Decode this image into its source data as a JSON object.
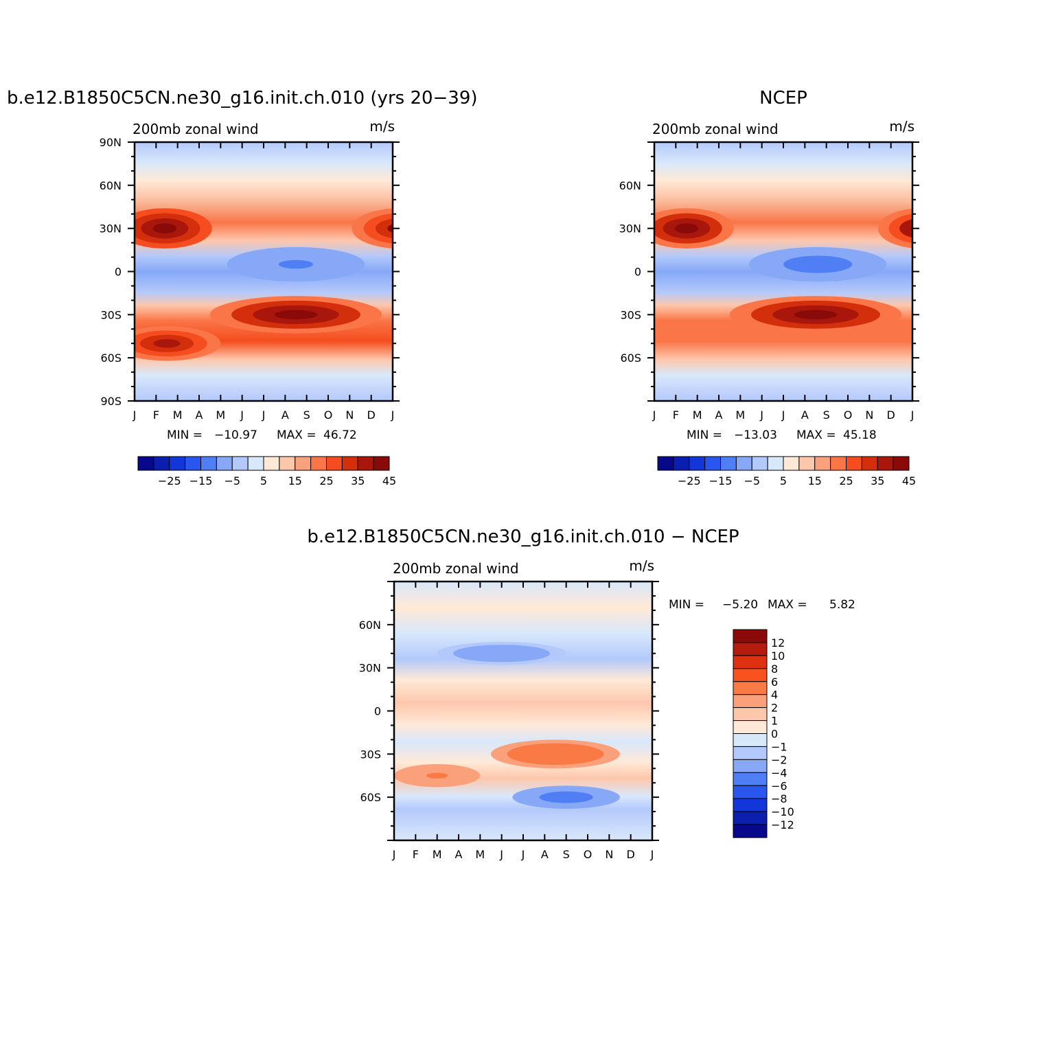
{
  "chart_data": [
    {
      "type": "heatmap",
      "title": "b.e12.B1850C5CN.ne30_g16.init.ch.010 (yrs 20−39)",
      "subtitle_left": "200mb  zonal  wind",
      "subtitle_right": "m/s",
      "x_tick_labels": [
        "J",
        "F",
        "M",
        "A",
        "M",
        "J",
        "J",
        "A",
        "S",
        "O",
        "N",
        "D",
        "J"
      ],
      "y_tick_labels": [
        "90N",
        "60N",
        "30N",
        "0",
        "30S",
        "60S",
        "90S"
      ],
      "y_tick_values": [
        90,
        60,
        30,
        0,
        -30,
        -60,
        -90
      ],
      "ylim": [
        -90,
        90
      ],
      "min_label": "MIN =",
      "min": "−10.97",
      "max_label": "MAX =",
      "max": "46.72",
      "contours": [
        {
          "lat": 30,
          "mon": 1.4,
          "value": 46.72,
          "wlat": 14,
          "wmon": 2.2
        },
        {
          "lat": 30,
          "mon": 12.3,
          "value": 40,
          "wlat": 14,
          "wmon": 2.2
        },
        {
          "lat": -30,
          "mon": 7.5,
          "value": 45,
          "wlat": 13,
          "wmon": 4
        },
        {
          "lat": 5,
          "mon": 7.5,
          "value": -10.97,
          "wlat": 12,
          "wmon": 3.2
        },
        {
          "lat": -50,
          "mon": 1.5,
          "value": 38,
          "wlat": 12,
          "wmon": 2.5
        }
      ]
    },
    {
      "type": "heatmap",
      "title": "NCEP",
      "subtitle_left": "200mb  zonal  wind",
      "subtitle_right": "m/s",
      "x_tick_labels": [
        "J",
        "F",
        "M",
        "A",
        "M",
        "J",
        "J",
        "A",
        "S",
        "O",
        "N",
        "D",
        "J"
      ],
      "y_tick_labels": [
        "60N",
        "30N",
        "0",
        "30S",
        "60S"
      ],
      "y_tick_values": [
        60,
        30,
        0,
        -30,
        -60
      ],
      "ylim": [
        -90,
        90
      ],
      "min_label": "MIN =",
      "min": "−13.03",
      "max_label": "MAX =",
      "max": "45.18",
      "contours": [
        {
          "lat": 30,
          "mon": 1.5,
          "value": 45.18,
          "wlat": 14,
          "wmon": 2.2
        },
        {
          "lat": 30,
          "mon": 12.4,
          "value": 42,
          "wlat": 14,
          "wmon": 2
        },
        {
          "lat": -30,
          "mon": 7.5,
          "value": 43,
          "wlat": 13,
          "wmon": 4
        },
        {
          "lat": 5,
          "mon": 7.6,
          "value": -13.03,
          "wlat": 12,
          "wmon": 3.2
        }
      ]
    },
    {
      "type": "heatmap",
      "title": "b.e12.B1850C5CN.ne30_g16.init.ch.010 − NCEP",
      "subtitle_left": "200mb  zonal  wind",
      "subtitle_right": "m/s",
      "x_tick_labels": [
        "J",
        "F",
        "M",
        "A",
        "M",
        "J",
        "J",
        "A",
        "S",
        "O",
        "N",
        "D",
        "J"
      ],
      "y_tick_labels": [
        "60N",
        "30N",
        "0",
        "30S",
        "60S"
      ],
      "y_tick_values": [
        60,
        30,
        0,
        -30,
        -60
      ],
      "ylim": [
        -90,
        90
      ],
      "min_label": "MIN =",
      "min": "−5.20",
      "max_label": "MAX =",
      "max": "5.82",
      "contours": [
        {
          "lat": -30,
          "mon": 7.5,
          "value": 5.82,
          "wlat": 10,
          "wmon": 3
        },
        {
          "lat": -60,
          "mon": 8,
          "value": -5.2,
          "wlat": 8,
          "wmon": 2.5
        },
        {
          "lat": 40,
          "mon": 5,
          "value": -3,
          "wlat": 8,
          "wmon": 3
        },
        {
          "lat": -45,
          "mon": 2,
          "value": 4,
          "wlat": 8,
          "wmon": 2
        }
      ]
    }
  ],
  "colorbar_top": {
    "colors": [
      "#08088c",
      "#0a1fb0",
      "#1236d8",
      "#2a56f0",
      "#4f7ef5",
      "#86a8f7",
      "#b3c9fb",
      "#d8e8fb",
      "#ffe9d6",
      "#fdc7ac",
      "#f9a07c",
      "#fa7547",
      "#f54d1f",
      "#d42f0c",
      "#a9160b",
      "#8a0a0a"
    ],
    "labels": [
      "−25",
      "−15",
      "−5",
      "5",
      "15",
      "25",
      "35",
      "45"
    ]
  },
  "colorbar_diff": {
    "colors": [
      "#8a0a0a",
      "#b61c0e",
      "#de3110",
      "#f8521f",
      "#fa7a45",
      "#faa17c",
      "#fdc7ac",
      "#ffe9d6",
      "#d8e8fb",
      "#b3c9fb",
      "#86a8f7",
      "#4f7ef5",
      "#2a56f0",
      "#1236d8",
      "#0a1fb0",
      "#08088c"
    ],
    "labels": [
      "12",
      "10",
      "8",
      "6",
      "4",
      "2",
      "1",
      "0",
      "−1",
      "−2",
      "−4",
      "−6",
      "−8",
      "−10",
      "−12"
    ]
  }
}
